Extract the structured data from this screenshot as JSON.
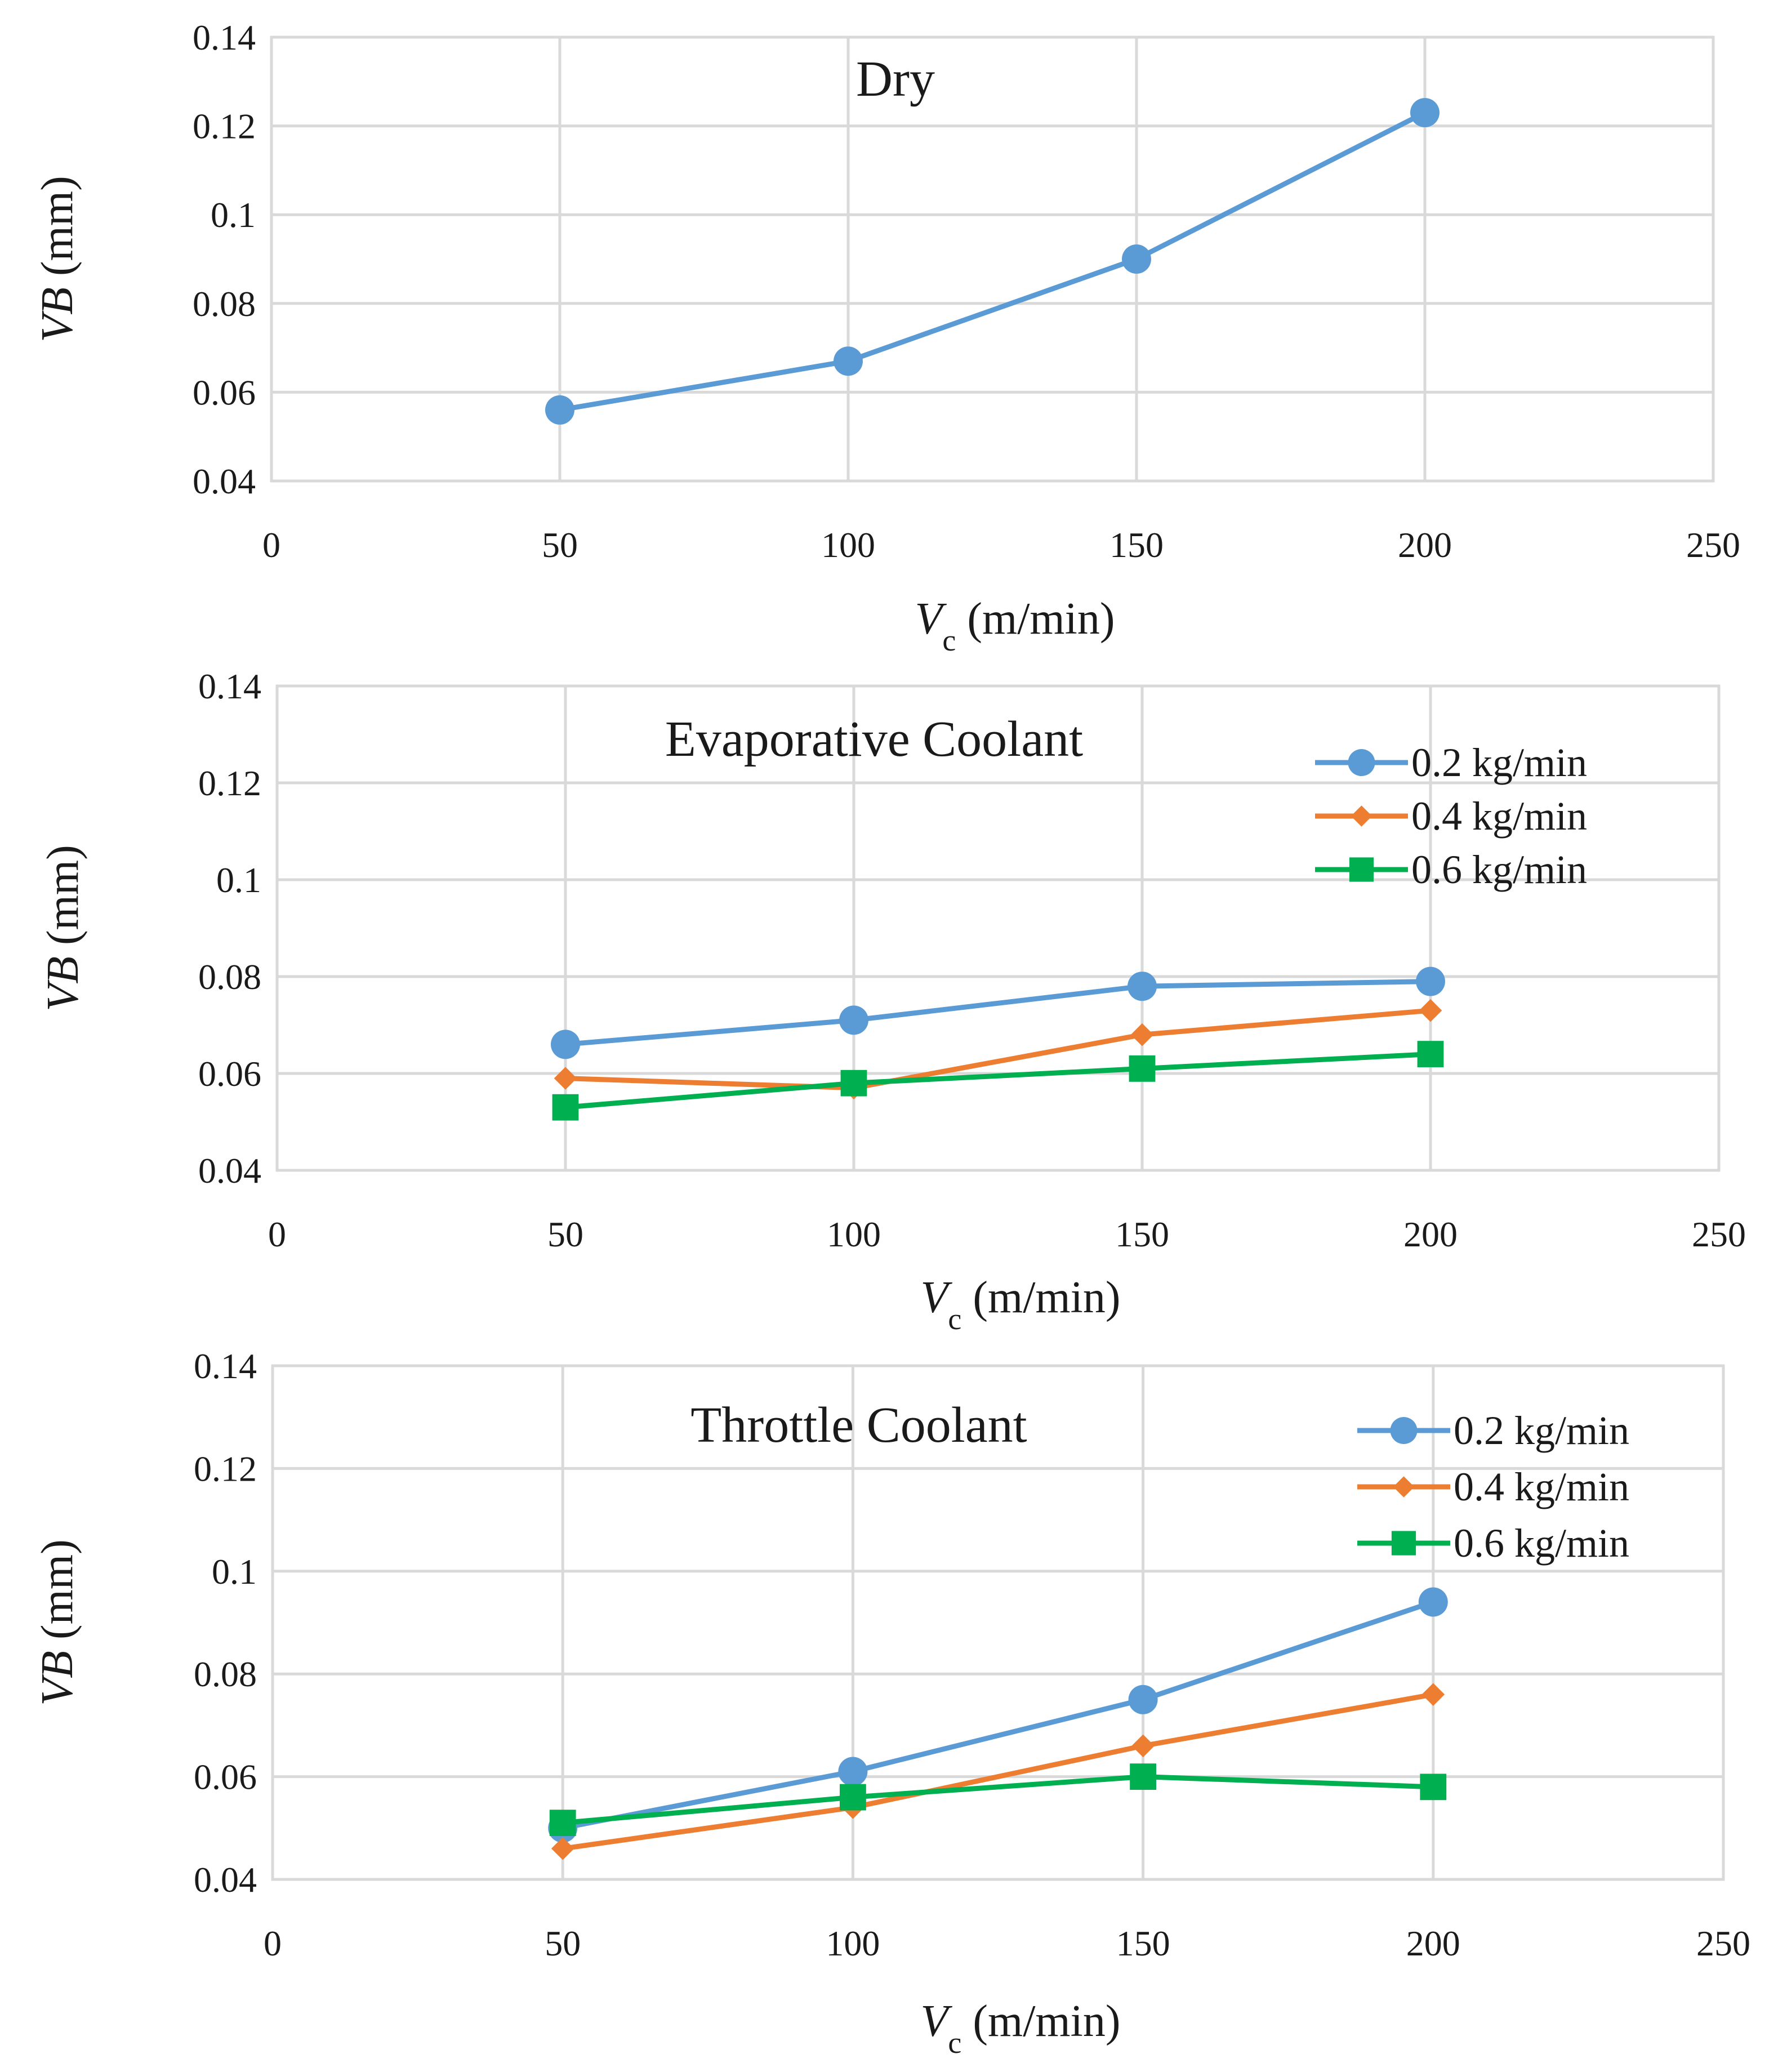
{
  "colors": {
    "0.2 kg/min": "#5b9bd5",
    "0.4 kg/min": "#ed7d31",
    "0.6 kg/min": "#00b050",
    "grid": "#d9d9d9",
    "text": "#1a1a1a"
  },
  "chart_data": [
    {
      "type": "line",
      "title": "Dry",
      "xlabel": "V_c (m/min)",
      "ylabel": "VB (mm)",
      "xlim": [
        0,
        250
      ],
      "ylim": [
        0.04,
        0.14
      ],
      "xticks": [
        "0",
        "50",
        "100",
        "150",
        "200",
        "250"
      ],
      "yticks": [
        "0.04",
        "0.06",
        "0.08",
        "0.1",
        "0.12",
        "0.14"
      ],
      "grid": true,
      "legend": null,
      "x": [
        50,
        100,
        150,
        200
      ],
      "series": [
        {
          "name": "",
          "marker": "circle",
          "color": "#5b9bd5",
          "values": [
            0.056,
            0.067,
            0.09,
            0.123
          ]
        }
      ]
    },
    {
      "type": "line",
      "title": "Evaporative Coolant",
      "xlabel": "V_c (m/min)",
      "ylabel": "VB (mm)",
      "xlim": [
        0,
        250
      ],
      "ylim": [
        0.04,
        0.14
      ],
      "xticks": [
        "0",
        "50",
        "100",
        "150",
        "200",
        "250"
      ],
      "yticks": [
        "0.04",
        "0.06",
        "0.08",
        "0.1",
        "0.12",
        "0.14"
      ],
      "grid": true,
      "legend": "top-right",
      "x": [
        50,
        100,
        150,
        200
      ],
      "series": [
        {
          "name": "0.2 kg/min",
          "marker": "circle",
          "color": "#5b9bd5",
          "values": [
            0.066,
            0.071,
            0.078,
            0.079
          ]
        },
        {
          "name": "0.4 kg/min",
          "marker": "diamond",
          "color": "#ed7d31",
          "values": [
            0.059,
            0.057,
            0.068,
            0.073
          ]
        },
        {
          "name": "0.6 kg/min",
          "marker": "square",
          "color": "#00b050",
          "values": [
            0.053,
            0.058,
            0.061,
            0.064
          ]
        }
      ]
    },
    {
      "type": "line",
      "title": "Throttle Coolant",
      "xlabel": "V_c (m/min)",
      "ylabel": "VB (mm)",
      "xlim": [
        0,
        250
      ],
      "ylim": [
        0.04,
        0.14
      ],
      "xticks": [
        "0",
        "50",
        "100",
        "150",
        "200",
        "250"
      ],
      "yticks": [
        "0.04",
        "0.06",
        "0.08",
        "0.1",
        "0.12",
        "0.14"
      ],
      "grid": true,
      "legend": "top-right",
      "x": [
        50,
        100,
        150,
        200
      ],
      "series": [
        {
          "name": "0.2 kg/min",
          "marker": "circle",
          "color": "#5b9bd5",
          "values": [
            0.05,
            0.061,
            0.075,
            0.094
          ]
        },
        {
          "name": "0.4 kg/min",
          "marker": "diamond",
          "color": "#ed7d31",
          "values": [
            0.046,
            0.054,
            0.066,
            0.076
          ]
        },
        {
          "name": "0.6 kg/min",
          "marker": "square",
          "color": "#00b050",
          "values": [
            0.051,
            0.056,
            0.06,
            0.058
          ]
        }
      ]
    }
  ]
}
